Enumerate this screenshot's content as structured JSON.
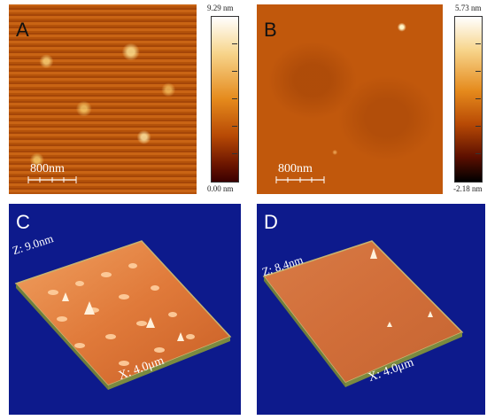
{
  "panels": {
    "a": {
      "letter": "A",
      "scalebar": "800nm",
      "colorbar": {
        "max": "9.29 nm",
        "min": "0.00 nm"
      }
    },
    "b": {
      "letter": "B",
      "scalebar": "800nm",
      "colorbar": {
        "max": "5.73 nm",
        "min": "-2.18 nm"
      }
    },
    "c": {
      "letter": "C",
      "z_label": "Z: 9.0nm",
      "x_label": "X: 4.0μm"
    },
    "d": {
      "letter": "D",
      "z_label": "Z: 8.4nm",
      "x_label": "X: 4.0μm"
    }
  },
  "colors": {
    "afm_orange": "#c1580c",
    "background_3d": "#0d1a8c"
  }
}
